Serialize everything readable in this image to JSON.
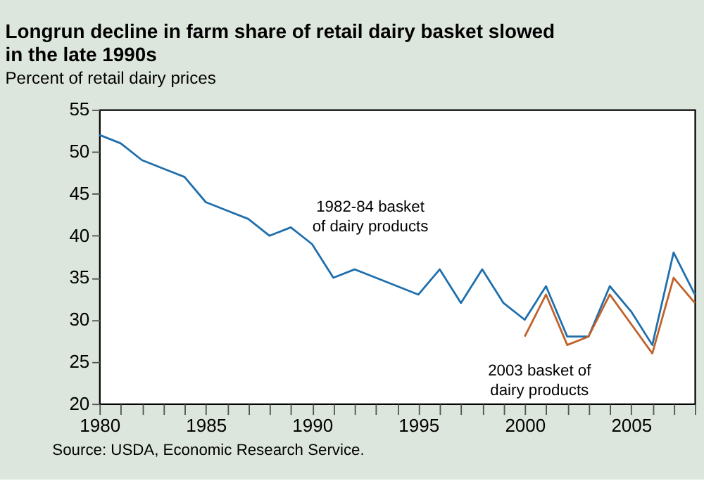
{
  "chart_data": {
    "type": "line",
    "title": [
      "Longrun decline in farm share of retail dairy basket slowed",
      "in the late 1990s"
    ],
    "subtitle": "Percent of retail dairy prices",
    "annotations": [
      "Source: USDA, Economic Research Service."
    ],
    "series": [
      {
        "name": "1982-84 basket\nof dairy products",
        "color": "#1f6fad",
        "x": [
          1980,
          1981,
          1982,
          1983,
          1984,
          1985,
          1986,
          1987,
          1988,
          1989,
          1990,
          1991,
          1992,
          1993,
          1994,
          1995,
          1996,
          1997,
          1998,
          1999,
          2000,
          2001,
          2002,
          2003,
          2004,
          2005,
          2006,
          2007,
          2008
        ],
        "values": [
          52,
          51,
          49,
          48,
          47,
          44,
          43,
          42,
          40,
          41,
          39,
          35,
          36,
          35,
          34,
          33,
          36,
          32,
          36,
          32,
          30,
          34,
          28,
          28,
          34,
          31,
          27,
          38,
          33
        ]
      },
      {
        "name": "2003 basket of\ndairy products",
        "color": "#c0622a",
        "x": [
          2000,
          2001,
          2002,
          2003,
          2004,
          2005,
          2006,
          2007,
          2008
        ],
        "values": [
          28,
          33,
          27,
          28,
          33,
          29.5,
          26,
          35,
          32
        ]
      }
    ],
    "xlim": [
      1980,
      2008
    ],
    "xticks": [
      1980,
      {
        "value": 1981,
        "label": null
      },
      {
        "value": 1982,
        "label": null
      },
      {
        "value": 1983,
        "label": null
      },
      {
        "value": 1984,
        "label": null
      },
      1985,
      {
        "value": 1986,
        "label": null
      },
      {
        "value": 1987,
        "label": null
      },
      {
        "value": 1988,
        "label": null
      },
      {
        "value": 1989,
        "label": null
      },
      1990,
      {
        "value": 1991,
        "label": null
      },
      {
        "value": 1992,
        "label": null
      },
      {
        "value": 1993,
        "label": null
      },
      {
        "value": 1994,
        "label": null
      },
      1995,
      {
        "value": 1996,
        "label": null
      },
      {
        "value": 1997,
        "label": null
      },
      {
        "value": 1998,
        "label": null
      },
      {
        "value": 1999,
        "label": null
      },
      2000,
      {
        "value": 2001,
        "label": null
      },
      {
        "value": 2002,
        "label": null
      },
      {
        "value": 2003,
        "label": null
      },
      {
        "value": 2004,
        "label": null
      },
      2005,
      {
        "value": 2006,
        "label": null
      },
      {
        "value": 2007,
        "label": null
      },
      {
        "value": 2008,
        "label": null
      }
    ],
    "ylim": [
      20,
      55
    ],
    "yticks": [
      20,
      25,
      30,
      35,
      40,
      45,
      50,
      55
    ],
    "grid": false,
    "legend": false,
    "marker": "none",
    "line_style": "solid"
  }
}
